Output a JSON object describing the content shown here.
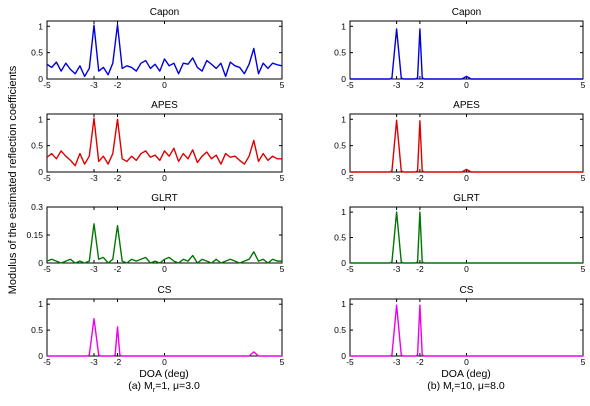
{
  "figure": {
    "ylabel": "Modulus of the estimated reflection coefficients",
    "xlabel_common": "DOA (deg)",
    "captions": {
      "left": [
        "(a) M",
        "r",
        "=1, μ=3.0"
      ],
      "right": [
        "(b) M",
        "r",
        "=10, μ=8.0"
      ]
    }
  },
  "chart_data": [
    {
      "type": "line",
      "title": "Capon",
      "column": "left",
      "color": "#0000dd",
      "xlim": [
        -5,
        5
      ],
      "ylim": [
        0,
        1.1
      ],
      "xticks": [
        -5,
        -3,
        -2,
        0,
        5
      ],
      "yticks": [
        0,
        0.5,
        1
      ],
      "ytick_labels": [
        "0",
        "0.5",
        "1"
      ],
      "series": [
        {
          "x": [
            -5,
            -4.8,
            -4.6,
            -4.4,
            -4.2,
            -4,
            -3.8,
            -3.6,
            -3.4,
            -3.2,
            -3,
            -2.8,
            -2.6,
            -2.4,
            -2.2,
            -2,
            -1.8,
            -1.6,
            -1.4,
            -1.2,
            -1,
            -0.8,
            -0.6,
            -0.4,
            -0.2,
            0,
            0.2,
            0.4,
            0.6,
            0.8,
            1,
            1.2,
            1.4,
            1.6,
            1.8,
            2,
            2.2,
            2.4,
            2.6,
            2.8,
            3,
            3.2,
            3.4,
            3.6,
            3.8,
            4,
            4.2,
            4.4,
            4.6,
            4.8,
            5
          ],
          "y": [
            0.28,
            0.22,
            0.32,
            0.15,
            0.3,
            0.18,
            0.1,
            0.25,
            0.05,
            0.2,
            1.02,
            0.15,
            0.22,
            0.08,
            0.3,
            1.03,
            0.2,
            0.25,
            0.22,
            0.15,
            0.3,
            0.35,
            0.2,
            0.28,
            0.15,
            0.38,
            0.25,
            0.3,
            0.1,
            0.3,
            0.28,
            0.4,
            0.22,
            0.15,
            0.35,
            0.28,
            0.2,
            0.3,
            0.05,
            0.32,
            0.25,
            0.22,
            0.1,
            0.28,
            0.58,
            0.1,
            0.3,
            0.2,
            0.3,
            0.27,
            0.25
          ]
        }
      ]
    },
    {
      "type": "line",
      "title": "Capon",
      "column": "right",
      "color": "#0000dd",
      "xlim": [
        -5,
        5
      ],
      "ylim": [
        0,
        1.1
      ],
      "xticks": [
        -5,
        -3,
        -2,
        0,
        5
      ],
      "yticks": [
        0,
        0.5,
        1
      ],
      "ytick_labels": [
        "0",
        "0.5",
        "1"
      ],
      "series": [
        {
          "x": [
            -5,
            -3.3,
            -3.2,
            -3,
            -2.8,
            -2.7,
            -2.2,
            -2.1,
            -2,
            -1.9,
            -1.8,
            -0.2,
            0,
            0.2,
            5
          ],
          "y": [
            0,
            0,
            0.02,
            0.95,
            0.02,
            0,
            0,
            0.02,
            0.95,
            0.02,
            0,
            0,
            0.05,
            0,
            0
          ]
        }
      ]
    },
    {
      "type": "line",
      "title": "APES",
      "column": "left",
      "color": "#dd0000",
      "xlim": [
        -5,
        5
      ],
      "ylim": [
        0,
        1.1
      ],
      "xticks": [
        -5,
        -3,
        -2,
        0,
        5
      ],
      "yticks": [
        0,
        0.5,
        1
      ],
      "ytick_labels": [
        "0",
        "0.5",
        "1"
      ],
      "series": [
        {
          "x": [
            -5,
            -4.8,
            -4.6,
            -4.4,
            -4.2,
            -4,
            -3.8,
            -3.6,
            -3.4,
            -3.2,
            -3,
            -2.8,
            -2.6,
            -2.4,
            -2.2,
            -2,
            -1.8,
            -1.6,
            -1.4,
            -1.2,
            -1,
            -0.8,
            -0.6,
            -0.4,
            -0.2,
            0,
            0.2,
            0.4,
            0.6,
            0.8,
            1,
            1.2,
            1.4,
            1.6,
            1.8,
            2,
            2.2,
            2.4,
            2.6,
            2.8,
            3,
            3.2,
            3.4,
            3.6,
            3.8,
            4,
            4.2,
            4.4,
            4.6,
            4.8,
            5
          ],
          "y": [
            0.28,
            0.35,
            0.25,
            0.4,
            0.3,
            0.22,
            0.12,
            0.35,
            0.15,
            0.3,
            1.02,
            0.2,
            0.3,
            0.15,
            0.35,
            1.0,
            0.25,
            0.2,
            0.3,
            0.22,
            0.35,
            0.4,
            0.28,
            0.32,
            0.22,
            0.4,
            0.3,
            0.45,
            0.2,
            0.35,
            0.25,
            0.42,
            0.18,
            0.3,
            0.38,
            0.25,
            0.32,
            0.15,
            0.35,
            0.28,
            0.3,
            0.22,
            0.15,
            0.3,
            0.6,
            0.2,
            0.35,
            0.22,
            0.3,
            0.25,
            0.25
          ]
        }
      ]
    },
    {
      "type": "line",
      "title": "APES",
      "column": "right",
      "color": "#dd0000",
      "xlim": [
        -5,
        5
      ],
      "ylim": [
        0,
        1.1
      ],
      "xticks": [
        -5,
        -3,
        -2,
        0,
        5
      ],
      "yticks": [
        0,
        0.5,
        1
      ],
      "ytick_labels": [
        "0",
        "0.5",
        "1"
      ],
      "series": [
        {
          "x": [
            -5,
            -3.3,
            -3.2,
            -3,
            -2.8,
            -2.7,
            -2.2,
            -2.1,
            -2,
            -1.9,
            -1.8,
            -0.2,
            0,
            0.2,
            5
          ],
          "y": [
            0,
            0,
            0.02,
            0.98,
            0.02,
            0,
            0,
            0.02,
            0.97,
            0.02,
            0,
            0,
            0.05,
            0,
            0
          ]
        }
      ]
    },
    {
      "type": "line",
      "title": "GLRT",
      "column": "left",
      "color": "#007700",
      "xlim": [
        -5,
        5
      ],
      "ylim": [
        0,
        0.3
      ],
      "xticks": [
        -5,
        -3,
        -2,
        0,
        5
      ],
      "yticks": [
        0,
        0.15,
        0.3
      ],
      "ytick_labels": [
        "0",
        "0.15",
        "0.3"
      ],
      "series": [
        {
          "x": [
            -5,
            -4.8,
            -4.6,
            -4.4,
            -4.2,
            -4,
            -3.8,
            -3.6,
            -3.4,
            -3.2,
            -3,
            -2.8,
            -2.6,
            -2.4,
            -2.2,
            -2,
            -1.8,
            -1.6,
            -1.4,
            -1.2,
            -1,
            -0.8,
            -0.6,
            -0.4,
            -0.2,
            0,
            0.2,
            0.4,
            0.6,
            0.8,
            1,
            1.2,
            1.4,
            1.6,
            1.8,
            2,
            2.2,
            2.4,
            2.6,
            2.8,
            3,
            3.2,
            3.4,
            3.6,
            3.8,
            4,
            4.2,
            4.4,
            4.6,
            4.8,
            5
          ],
          "y": [
            0.01,
            0.02,
            0.01,
            0.0,
            0.01,
            0.02,
            0.0,
            0.01,
            0.0,
            0.01,
            0.21,
            0.02,
            0.03,
            0.0,
            0.02,
            0.2,
            0.01,
            0.0,
            0.02,
            0.01,
            0.02,
            0.03,
            0.0,
            0.01,
            0.0,
            0.02,
            0.03,
            0.01,
            0.0,
            0.02,
            0.01,
            0.04,
            0.0,
            0.02,
            0.01,
            0.0,
            0.02,
            0.0,
            0.01,
            0.02,
            0.01,
            0.0,
            0.01,
            0.02,
            0.06,
            0.01,
            0.02,
            0.0,
            0.02,
            0.01,
            0.01
          ]
        }
      ]
    },
    {
      "type": "line",
      "title": "GLRT",
      "column": "right",
      "color": "#007700",
      "xlim": [
        -5,
        5
      ],
      "ylim": [
        0,
        1.1
      ],
      "xticks": [
        -5,
        -3,
        -2,
        0,
        5
      ],
      "yticks": [
        0,
        0.5,
        1
      ],
      "ytick_labels": [
        "0",
        "0.5",
        "1"
      ],
      "series": [
        {
          "x": [
            -5,
            -3.3,
            -3.2,
            -3,
            -2.8,
            -2.7,
            -2.2,
            -2.1,
            -2,
            -1.9,
            -1.8,
            5
          ],
          "y": [
            0,
            0,
            0.02,
            1.0,
            0.02,
            0,
            0,
            0.02,
            1.0,
            0.02,
            0,
            0
          ]
        }
      ]
    },
    {
      "type": "line",
      "title": "CS",
      "column": "left",
      "color": "#ee00ee",
      "xlim": [
        -5,
        5
      ],
      "ylim": [
        0,
        1.1
      ],
      "xticks": [
        -5,
        -3,
        -2,
        0,
        5
      ],
      "yticks": [
        0,
        0.5,
        1
      ],
      "ytick_labels": [
        "0",
        "0.5",
        "1"
      ],
      "series": [
        {
          "x": [
            -5,
            -3.3,
            -3.2,
            -3,
            -2.8,
            -2.7,
            -2.2,
            -2.1,
            -2,
            -1.9,
            -1.8,
            3.6,
            3.8,
            4,
            5
          ],
          "y": [
            0,
            0,
            0.02,
            0.72,
            0.02,
            0,
            0,
            0.02,
            0.56,
            0.02,
            0,
            0,
            0.08,
            0,
            0
          ]
        }
      ]
    },
    {
      "type": "line",
      "title": "CS",
      "column": "right",
      "color": "#ee00ee",
      "xlim": [
        -5,
        5
      ],
      "ylim": [
        0,
        1.1
      ],
      "xticks": [
        -5,
        -3,
        -2,
        0,
        5
      ],
      "yticks": [
        0,
        0.5,
        1
      ],
      "ytick_labels": [
        "0",
        "0.5",
        "1"
      ],
      "series": [
        {
          "x": [
            -5,
            -3.3,
            -3.2,
            -3,
            -2.8,
            -2.7,
            -2.2,
            -2.1,
            -2,
            -1.9,
            -1.8,
            5
          ],
          "y": [
            0,
            0,
            0.02,
            0.98,
            0.02,
            0,
            0,
            0.02,
            0.98,
            0.02,
            0,
            0
          ]
        }
      ]
    }
  ]
}
